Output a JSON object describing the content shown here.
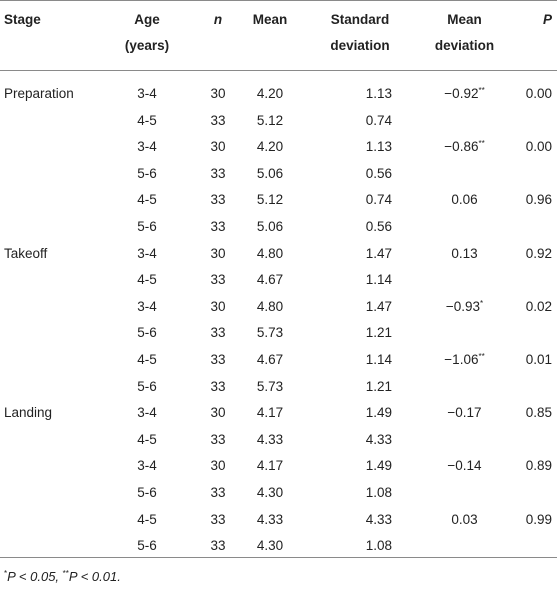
{
  "headers": {
    "stage": "Stage",
    "age": [
      "Age",
      "(years)"
    ],
    "n": "n",
    "mean": "Mean",
    "sd": [
      "Standard",
      "deviation"
    ],
    "md": [
      "Mean",
      "deviation"
    ],
    "p": "P"
  },
  "rows": [
    {
      "stage": "Preparation",
      "age": "3-4",
      "n": "30",
      "mean": "4.20",
      "sd": "1.13",
      "md": "−0.92",
      "md_sup": "**",
      "p": "0.00"
    },
    {
      "stage": "",
      "age": "4-5",
      "n": "33",
      "mean": "5.12",
      "sd": "0.74",
      "md": "",
      "md_sup": "",
      "p": ""
    },
    {
      "stage": "",
      "age": "3-4",
      "n": "30",
      "mean": "4.20",
      "sd": "1.13",
      "md": "−0.86",
      "md_sup": "**",
      "p": "0.00"
    },
    {
      "stage": "",
      "age": "5-6",
      "n": "33",
      "mean": "5.06",
      "sd": "0.56",
      "md": "",
      "md_sup": "",
      "p": ""
    },
    {
      "stage": "",
      "age": "4-5",
      "n": "33",
      "mean": "5.12",
      "sd": "0.74",
      "md": "0.06",
      "md_sup": "",
      "p": "0.96"
    },
    {
      "stage": "",
      "age": "5-6",
      "n": "33",
      "mean": "5.06",
      "sd": "0.56",
      "md": "",
      "md_sup": "",
      "p": ""
    },
    {
      "stage": "Takeoff",
      "age": "3-4",
      "n": "30",
      "mean": "4.80",
      "sd": "1.47",
      "md": "0.13",
      "md_sup": "",
      "p": "0.92"
    },
    {
      "stage": "",
      "age": "4-5",
      "n": "33",
      "mean": "4.67",
      "sd": "1.14",
      "md": "",
      "md_sup": "",
      "p": ""
    },
    {
      "stage": "",
      "age": "3-4",
      "n": "30",
      "mean": "4.80",
      "sd": "1.47",
      "md": "−0.93",
      "md_sup": "*",
      "p": "0.02"
    },
    {
      "stage": "",
      "age": "5-6",
      "n": "33",
      "mean": "5.73",
      "sd": "1.21",
      "md": "",
      "md_sup": "",
      "p": ""
    },
    {
      "stage": "",
      "age": "4-5",
      "n": "33",
      "mean": "4.67",
      "sd": "1.14",
      "md": "−1.06",
      "md_sup": "**",
      "p": "0.01"
    },
    {
      "stage": "",
      "age": "5-6",
      "n": "33",
      "mean": "5.73",
      "sd": "1.21",
      "md": "",
      "md_sup": "",
      "p": ""
    },
    {
      "stage": "Landing",
      "age": "3-4",
      "n": "30",
      "mean": "4.17",
      "sd": "1.49",
      "md": "−0.17",
      "md_sup": "",
      "p": "0.85"
    },
    {
      "stage": "",
      "age": "4-5",
      "n": "33",
      "mean": "4.33",
      "sd": "4.33",
      "md": "",
      "md_sup": "",
      "p": ""
    },
    {
      "stage": "",
      "age": "3-4",
      "n": "30",
      "mean": "4.17",
      "sd": "1.49",
      "md": "−0.14",
      "md_sup": "",
      "p": "0.89"
    },
    {
      "stage": "",
      "age": "5-6",
      "n": "33",
      "mean": "4.30",
      "sd": "1.08",
      "md": "",
      "md_sup": "",
      "p": ""
    },
    {
      "stage": "",
      "age": "4-5",
      "n": "33",
      "mean": "4.33",
      "sd": "4.33",
      "md": "0.03",
      "md_sup": "",
      "p": "0.99"
    },
    {
      "stage": "",
      "age": "5-6",
      "n": "33",
      "mean": "4.30",
      "sd": "1.08",
      "md": "",
      "md_sup": "",
      "p": ""
    }
  ],
  "footnote": {
    "sup1": "*",
    "text1": "P < 0.05, ",
    "sup2": "**",
    "text2": "P < 0.01."
  }
}
